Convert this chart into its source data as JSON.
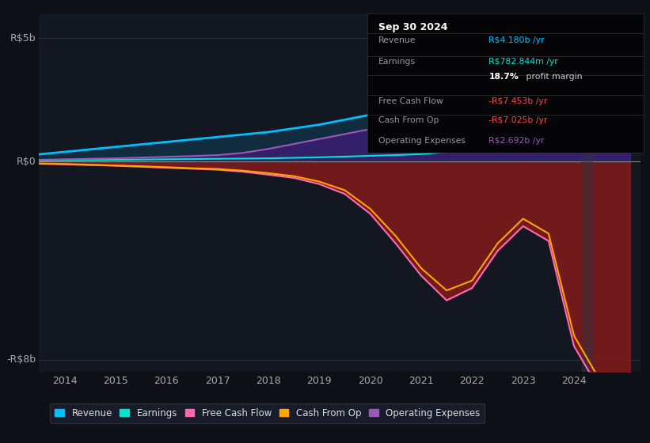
{
  "bg_color": "#0d1117",
  "plot_bg_color": "#131722",
  "ylim": [
    -8.5,
    6.0
  ],
  "xlim": [
    2013.5,
    2025.3
  ],
  "xticks": [
    2014,
    2015,
    2016,
    2017,
    2018,
    2019,
    2020,
    2021,
    2022,
    2023,
    2024
  ],
  "grid_color": "#2a2e39",
  "zero_line_color": "#888888",
  "years": [
    2013.5,
    2014.0,
    2014.5,
    2015.0,
    2015.5,
    2016.0,
    2016.5,
    2017.0,
    2017.5,
    2018.0,
    2018.5,
    2019.0,
    2019.5,
    2020.0,
    2020.5,
    2021.0,
    2021.5,
    2022.0,
    2022.5,
    2023.0,
    2023.5,
    2024.0,
    2024.5,
    2025.1
  ],
  "revenue": [
    0.3,
    0.4,
    0.5,
    0.6,
    0.7,
    0.8,
    0.9,
    1.0,
    1.1,
    1.2,
    1.35,
    1.5,
    1.7,
    1.9,
    2.1,
    2.3,
    2.55,
    2.85,
    3.15,
    3.45,
    3.8,
    4.18,
    5.3,
    5.6
  ],
  "earnings": [
    0.05,
    0.06,
    0.07,
    0.08,
    0.09,
    0.1,
    0.11,
    0.12,
    0.13,
    0.14,
    0.16,
    0.18,
    0.21,
    0.24,
    0.27,
    0.31,
    0.39,
    0.49,
    0.58,
    0.63,
    0.68,
    0.78,
    0.88,
    0.92
  ],
  "free_cash_flow": [
    -0.08,
    -0.1,
    -0.13,
    -0.16,
    -0.2,
    -0.24,
    -0.28,
    -0.32,
    -0.4,
    -0.52,
    -0.65,
    -0.9,
    -1.3,
    -2.1,
    -3.3,
    -4.6,
    -5.6,
    -5.1,
    -3.6,
    -2.6,
    -3.2,
    -7.45,
    -9.2,
    -9.6
  ],
  "cash_from_op": [
    -0.07,
    -0.09,
    -0.12,
    -0.15,
    -0.18,
    -0.22,
    -0.26,
    -0.29,
    -0.36,
    -0.46,
    -0.58,
    -0.8,
    -1.15,
    -1.9,
    -3.0,
    -4.3,
    -5.2,
    -4.8,
    -3.3,
    -2.3,
    -2.9,
    -7.03,
    -8.8,
    -9.2
  ],
  "op_expenses": [
    0.08,
    0.1,
    0.12,
    0.14,
    0.17,
    0.2,
    0.23,
    0.27,
    0.36,
    0.52,
    0.72,
    0.92,
    1.12,
    1.32,
    1.52,
    1.72,
    2.02,
    2.32,
    2.52,
    2.62,
    2.69,
    2.69,
    3.6,
    3.9
  ],
  "revenue_color": "#00bfff",
  "earnings_color": "#00e5cc",
  "free_cash_flow_color": "#ff69b4",
  "cash_from_op_color": "#ffa500",
  "op_expenses_color": "#9b59b6",
  "legend_items": [
    {
      "label": "Revenue",
      "color": "#00bfff"
    },
    {
      "label": "Earnings",
      "color": "#00e5cc"
    },
    {
      "label": "Free Cash Flow",
      "color": "#ff69b4"
    },
    {
      "label": "Cash From Op",
      "color": "#ffa500"
    },
    {
      "label": "Operating Expenses",
      "color": "#9b59b6"
    }
  ],
  "info_box": {
    "title": "Sep 30 2024",
    "rows": [
      {
        "label": "Revenue",
        "value": "R$4.180b /yr",
        "value_color": "#00bfff",
        "bold_part": ""
      },
      {
        "label": "Earnings",
        "value": "R$782.844m /yr",
        "value_color": "#00e5cc",
        "bold_part": ""
      },
      {
        "label": "",
        "value": " profit margin",
        "value_color": "#cccccc",
        "bold_part": "18.7%"
      },
      {
        "label": "Free Cash Flow",
        "value": "-R$7.453b /yr",
        "value_color": "#ff4444",
        "bold_part": ""
      },
      {
        "label": "Cash From Op",
        "value": "-R$7.025b /yr",
        "value_color": "#ff4444",
        "bold_part": ""
      },
      {
        "label": "Operating Expenses",
        "value": "R$2.692b /yr",
        "value_color": "#9b59b6",
        "bold_part": ""
      }
    ],
    "dividers": [
      0.855,
      0.695,
      0.555,
      0.415,
      0.275
    ]
  }
}
